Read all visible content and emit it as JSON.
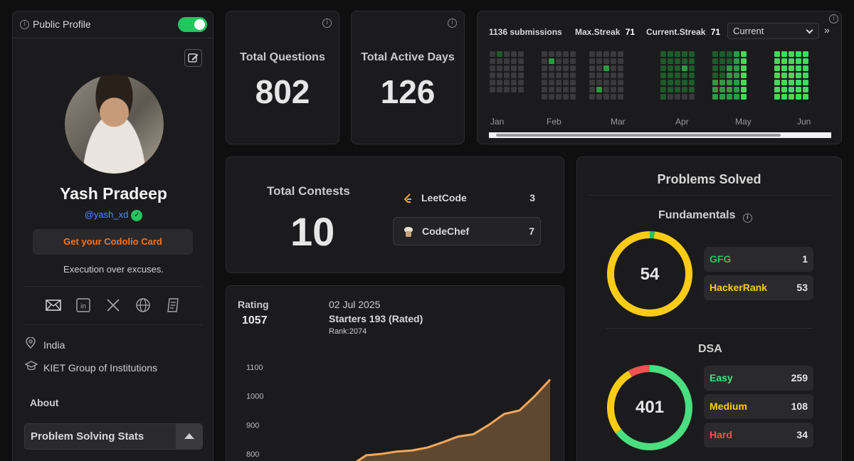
{
  "profile": {
    "public_label": "Public Profile",
    "public_enabled": true,
    "name": "Yash Pradeep",
    "handle": "@yash_xd",
    "card_button": "Get your Codolio Card",
    "bio": "Execution over excuses.",
    "socials": [
      "email-icon",
      "linkedin-icon",
      "x-icon",
      "globe-icon",
      "resume-icon"
    ],
    "location": "India",
    "institution": "KIET Group of Institutions",
    "about_label": "About",
    "stats_section": "Problem Solving Stats"
  },
  "stats": {
    "total_questions_label": "Total Questions",
    "total_questions": "802",
    "active_days_label": "Total Active Days",
    "active_days": "126"
  },
  "heatmap": {
    "submissions": "1136 submissions",
    "max_streak_label": "Max.Streak",
    "max_streak": "71",
    "current_streak_label": "Current.Streak",
    "current_streak": "71",
    "select_value": "Current",
    "months": [
      "Jan",
      "Feb",
      "Mar",
      "Apr",
      "May",
      "Jun"
    ],
    "levels": {
      "Jan": [
        [
          0,
          0,
          0,
          0,
          0,
          0
        ],
        [
          1,
          0,
          0,
          0,
          0,
          0
        ],
        [
          0,
          0,
          0,
          0,
          0,
          0
        ],
        [
          0,
          0,
          0,
          0,
          0,
          0
        ],
        [
          0,
          0,
          0,
          0,
          0,
          0
        ]
      ],
      "Feb": [
        [
          0,
          0,
          0,
          0,
          0,
          0,
          0
        ],
        [
          0,
          2,
          0,
          0,
          0,
          0,
          0
        ],
        [
          0,
          0,
          0,
          0,
          0,
          0,
          0
        ],
        [
          0,
          0,
          0,
          0,
          0,
          0,
          0
        ],
        [
          0,
          0,
          0,
          0,
          0,
          0,
          0
        ]
      ],
      "Mar": [
        [
          0,
          0,
          0,
          0,
          0,
          0,
          0
        ],
        [
          0,
          0,
          0,
          0,
          0,
          2,
          0
        ],
        [
          0,
          0,
          2,
          0,
          0,
          0,
          0
        ],
        [
          0,
          0,
          0,
          0,
          0,
          0,
          0
        ],
        [
          0,
          0,
          0,
          0,
          0,
          0,
          0
        ]
      ],
      "Apr": [
        [
          1,
          1,
          1,
          1,
          1,
          1,
          1
        ],
        [
          1,
          1,
          1,
          1,
          1,
          1,
          0
        ],
        [
          1,
          1,
          1,
          1,
          1,
          1,
          0
        ],
        [
          1,
          1,
          2,
          1,
          1,
          1,
          0
        ],
        [
          1,
          1,
          1,
          1,
          1,
          1,
          0
        ]
      ],
      "May": [
        [
          1,
          1,
          1,
          1,
          2,
          2,
          2
        ],
        [
          1,
          1,
          1,
          1,
          2,
          2,
          2
        ],
        [
          1,
          1,
          2,
          2,
          2,
          2,
          2
        ],
        [
          2,
          2,
          2,
          2,
          2,
          2,
          2
        ],
        [
          3,
          3,
          3,
          3,
          3,
          3,
          3
        ]
      ],
      "Jun": [
        [
          3,
          3,
          3,
          3,
          3,
          3,
          3
        ],
        [
          3,
          3,
          3,
          3,
          3,
          3,
          3
        ],
        [
          3,
          3,
          3,
          3,
          3,
          3,
          3
        ],
        [
          3,
          3,
          3,
          3,
          3,
          3,
          3
        ],
        [
          3,
          3,
          3,
          3,
          3,
          3,
          3
        ]
      ]
    }
  },
  "contests": {
    "label": "Total Contests",
    "total": "10",
    "platforms": [
      {
        "name": "LeetCode",
        "count": "3",
        "icon": "leetcode-icon"
      },
      {
        "name": "CodeChef",
        "count": "7",
        "icon": "codechef-icon"
      }
    ]
  },
  "rating": {
    "label": "Rating",
    "value": "1057",
    "date": "02 Jul 2025",
    "contest": "Starters 193 (Rated)",
    "rank": "Rank:2074"
  },
  "chart_data": {
    "type": "area",
    "yticks": [
      "1100",
      "1000",
      "900",
      "800"
    ],
    "ylim": [
      800,
      1100
    ],
    "y": [
      760,
      795,
      800,
      808,
      812,
      822,
      840,
      860,
      868,
      900,
      938,
      950,
      1000,
      1057
    ],
    "color": "#f5a85a"
  },
  "solved": {
    "title": "Problems Solved",
    "fundamentals_label": "Fundamentals",
    "fundamentals_total": "54",
    "fundamentals": [
      {
        "name": "GFG",
        "count": "1",
        "color": "#22c55e"
      },
      {
        "name": "HackerRank",
        "count": "53",
        "color": "#facc15"
      }
    ],
    "dsa_label": "DSA",
    "dsa_total": "401",
    "dsa": [
      {
        "name": "Easy",
        "count": "259",
        "color": "#4ade80"
      },
      {
        "name": "Medium",
        "count": "108",
        "color": "#facc15"
      },
      {
        "name": "Hard",
        "count": "34",
        "color": "#f05252"
      }
    ]
  }
}
